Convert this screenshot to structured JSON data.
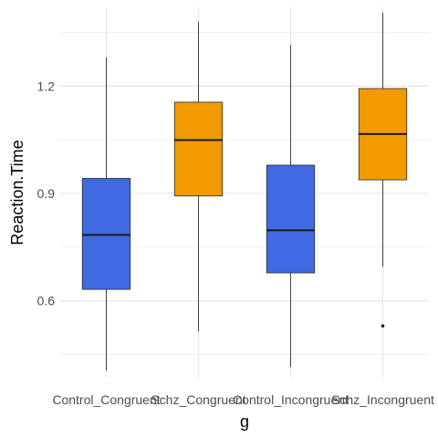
{
  "chart_data": {
    "type": "boxplot",
    "title": "",
    "xlabel": "g",
    "ylabel": "Reaction.Time",
    "ylim": [
      0.385,
      1.42
    ],
    "yticks": [
      0.6,
      0.9,
      1.2
    ],
    "ytick_labels": [
      "0.6",
      "0.9",
      "1.2"
    ],
    "grid": true,
    "legend": "none",
    "categories": [
      "Control_Congruent",
      "Schz_Congruent",
      "Control_Incongruent",
      "Schz_Incongruent"
    ],
    "boxes": [
      {
        "category": "Control_Congruent",
        "min": 0.405,
        "q1": 0.632,
        "median": 0.784,
        "q3": 0.942,
        "max": 1.28,
        "outliers": [],
        "color": "#4169e1"
      },
      {
        "category": "Schz_Congruent",
        "min": 0.515,
        "q1": 0.893,
        "median": 1.049,
        "q3": 1.155,
        "max": 1.38,
        "outliers": [],
        "color": "#f19b00"
      },
      {
        "category": "Control_Incongruent",
        "min": 0.415,
        "q1": 0.678,
        "median": 0.797,
        "q3": 0.979,
        "max": 1.315,
        "outliers": [],
        "color": "#4169e1"
      },
      {
        "category": "Schz_Incongruent",
        "min": 0.695,
        "q1": 0.938,
        "median": 1.066,
        "q3": 1.193,
        "max": 1.405,
        "outliers": [
          0.53
        ],
        "color": "#f19b00"
      }
    ]
  }
}
